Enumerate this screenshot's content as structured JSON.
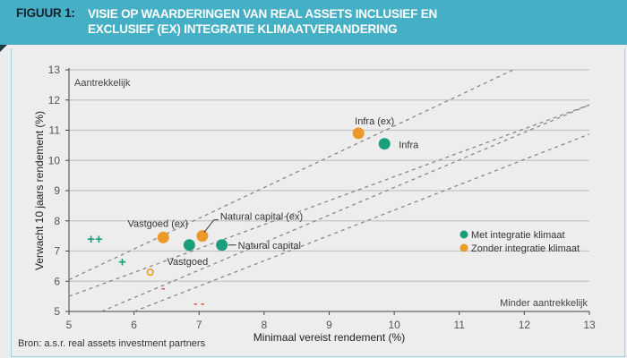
{
  "header": {
    "figure_label": "FIGUUR 1:",
    "title_line1": "VISIE OP WAARDERINGEN VAN REAL ASSETS INCLUSIEF EN",
    "title_line2": "EXCLUSIEF (EX) INTEGRATIE KLIMAATVERANDERING"
  },
  "source": "Bron: a.s.r. real assets investment partners",
  "chart_data": {
    "type": "scatter",
    "title": "Visie op waarderingen van real assets inclusief en exclusief (ex) integratie klimaatverandering",
    "xlabel": "Minimaal vereist rendement (%)",
    "ylabel": "Verwacht 10 jaars rendement (%)",
    "xlim": [
      5,
      13
    ],
    "ylim": [
      5,
      13
    ],
    "xticks": [
      5,
      6,
      7,
      8,
      9,
      10,
      11,
      12,
      13
    ],
    "yticks": [
      5,
      6,
      7,
      8,
      9,
      10,
      11,
      12,
      13
    ],
    "grid": "horizontal",
    "legend_position": "right",
    "colors": {
      "met": "#1a9e7c",
      "zonder": "#eb9a2a",
      "minus": "#e0504a",
      "plus": "#1a9e7c"
    },
    "series": [
      {
        "name": "Met integratie klimaat",
        "color_key": "met",
        "points": [
          {
            "label": "Infra",
            "x": 9.85,
            "y": 10.55
          },
          {
            "label": "Vastgoed",
            "x": 6.85,
            "y": 7.2
          },
          {
            "label": "Natural capital",
            "x": 7.35,
            "y": 7.2
          }
        ]
      },
      {
        "name": "Zonder integratie klimaat",
        "color_key": "zonder",
        "points": [
          {
            "label": "Infra (ex)",
            "x": 9.45,
            "y": 10.9
          },
          {
            "label": "Vastgoed (ex)",
            "x": 6.45,
            "y": 7.45
          },
          {
            "label": "Natural capital (ex)",
            "x": 7.05,
            "y": 7.5
          }
        ]
      }
    ],
    "reference_lines": [
      {
        "x1": 5.0,
        "y1": 6.05,
        "x2": 11.83,
        "y2": 13.0
      },
      {
        "x1": 5.0,
        "y1": 5.5,
        "x2": 13.0,
        "y2": 11.84
      },
      {
        "x1": 5.5,
        "y1": 5.0,
        "x2": 13.0,
        "y2": 11.84
      },
      {
        "x1": 6.0,
        "y1": 5.0,
        "x2": 13.0,
        "y2": 10.87
      }
    ],
    "scale_markers": [
      {
        "text": "++",
        "x": 5.4,
        "y": 7.4,
        "color_key": "plus"
      },
      {
        "text": "+",
        "x": 5.82,
        "y": 6.65,
        "color_key": "plus"
      },
      {
        "text": "o",
        "x": 6.25,
        "y": 6.3,
        "color_key": "zonder"
      },
      {
        "text": "-",
        "x": 6.45,
        "y": 5.8,
        "color_key": "minus"
      },
      {
        "text": "- -",
        "x": 7.0,
        "y": 5.3,
        "color_key": "minus"
      }
    ],
    "annotations": [
      {
        "text": "Aantrekkelijk",
        "position": "top-left"
      },
      {
        "text": "Minder aantrekkelijk",
        "position": "bottom-right"
      }
    ]
  }
}
